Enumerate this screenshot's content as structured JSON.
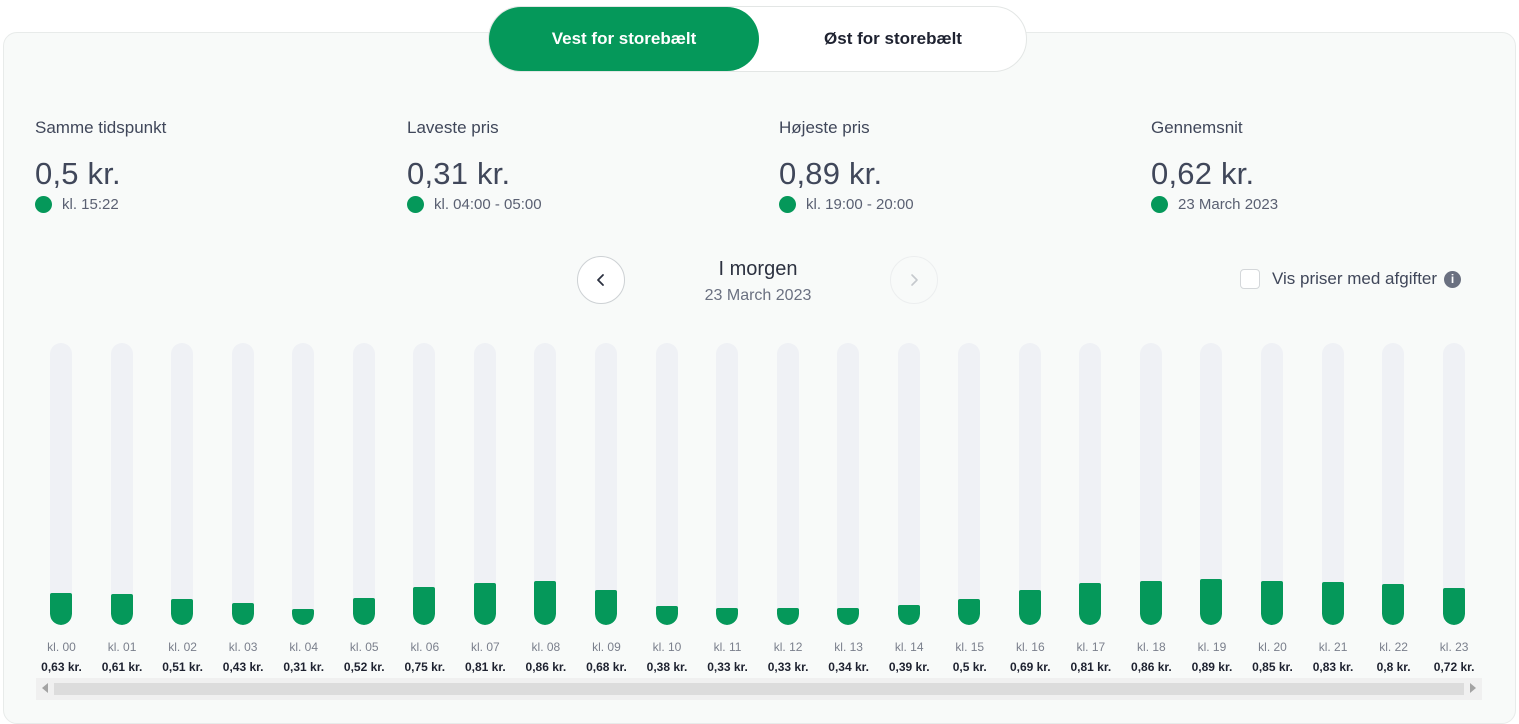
{
  "toggle": {
    "west_label": "Vest for storebælt",
    "east_label": "Øst for storebælt"
  },
  "stats": [
    {
      "label": "Samme tidspunkt",
      "value": "0,5 kr.",
      "sub": "kl. 15:22"
    },
    {
      "label": "Laveste pris",
      "value": "0,31 kr.",
      "sub": "kl. 04:00 - 05:00"
    },
    {
      "label": "Højeste pris",
      "value": "0,89 kr.",
      "sub": "kl. 19:00 - 20:00"
    },
    {
      "label": "Gennemsnit",
      "value": "0,62 kr.",
      "sub": "23 March 2023"
    }
  ],
  "nav": {
    "title": "I morgen",
    "date": "23 March 2023"
  },
  "vat_toggle": {
    "label": "Vis priser med afgifter",
    "checked": false
  },
  "colors": {
    "accent": "#05985a",
    "track": "#eff1f5"
  },
  "chart_data": {
    "type": "bar",
    "categories": [
      "kl. 00",
      "kl. 01",
      "kl. 02",
      "kl. 03",
      "kl. 04",
      "kl. 05",
      "kl. 06",
      "kl. 07",
      "kl. 08",
      "kl. 09",
      "kl. 10",
      "kl. 11",
      "kl. 12",
      "kl. 13",
      "kl. 14",
      "kl. 15",
      "kl. 16",
      "kl. 17",
      "kl. 18",
      "kl. 19",
      "kl. 20",
      "kl. 21",
      "kl. 22",
      "kl. 23"
    ],
    "values": [
      0.63,
      0.61,
      0.51,
      0.43,
      0.31,
      0.52,
      0.75,
      0.81,
      0.86,
      0.68,
      0.38,
      0.33,
      0.33,
      0.34,
      0.39,
      0.5,
      0.69,
      0.81,
      0.86,
      0.89,
      0.85,
      0.83,
      0.8,
      0.72
    ],
    "value_labels": [
      "0,63 kr.",
      "0,61 kr.",
      "0,51 kr.",
      "0,43 kr.",
      "0,31 kr.",
      "0,52 kr.",
      "0,75 kr.",
      "0,81 kr.",
      "0,86 kr.",
      "0,68 kr.",
      "0,38 kr.",
      "0,33 kr.",
      "0,33 kr.",
      "0,34 kr.",
      "0,39 kr.",
      "0,5 kr.",
      "0,69 kr.",
      "0,81 kr.",
      "0,86 kr.",
      "0,89 kr.",
      "0,85 kr.",
      "0,83 kr.",
      "0,8 kr.",
      "0,72 kr."
    ],
    "ylim": [
      0,
      5.5
    ],
    "grid": false
  }
}
